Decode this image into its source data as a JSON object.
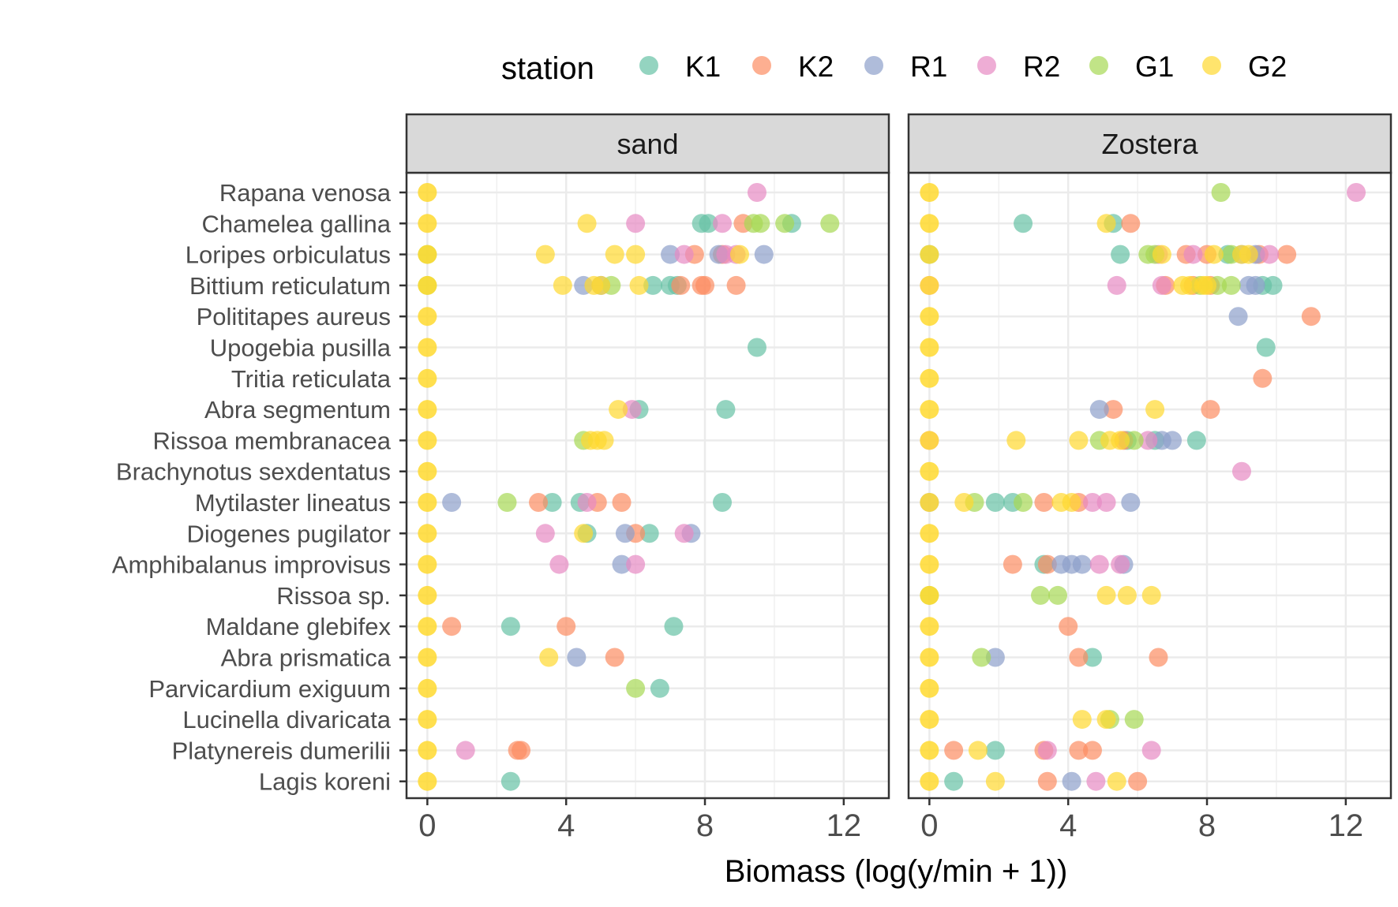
{
  "chart_data": {
    "type": "scatter",
    "title": "",
    "xlabel": "Biomass (log(y/min + 1))",
    "ylabel": "",
    "xlim": [
      -0.6,
      13.3
    ],
    "xticks": [
      "0",
      "4",
      "8",
      "12"
    ],
    "grid": true,
    "legend": {
      "title": "station",
      "placement": "top",
      "items": [
        {
          "name": "K1",
          "color": "#66c2a5"
        },
        {
          "name": "K2",
          "color": "#fc8d62"
        },
        {
          "name": "R1",
          "color": "#8da0cb"
        },
        {
          "name": "R2",
          "color": "#e78ac3"
        },
        {
          "name": "G1",
          "color": "#a6d854"
        },
        {
          "name": "G2",
          "color": "#ffd92f"
        }
      ]
    },
    "categories": [
      "Rapana venosa",
      "Chamelea gallina",
      "Loripes orbiculatus",
      "Bittium reticulatum",
      "Polititapes aureus",
      "Upogebia pusilla",
      "Tritia reticulata",
      "Abra segmentum",
      "Rissoa membranacea",
      "Brachynotus sexdentatus",
      "Mytilaster lineatus",
      "Diogenes pugilator",
      "Amphibalanus improvisus",
      "Rissoa sp.",
      "Maldane glebifex",
      "Abra prismatica",
      "Parvicardium exiguum",
      "Lucinella divaricata",
      "Platynereis dumerilii",
      "Lagis koreni"
    ],
    "panels": [
      {
        "name": "sand",
        "points": {
          "Rapana venosa": {
            "R2": [
              9.5
            ]
          },
          "Chamelea gallina": {
            "K1": [
              7.9,
              8.1,
              10.5
            ],
            "K2": [
              9.1
            ],
            "R2": [
              6.0,
              8.5
            ],
            "G1": [
              9.4,
              9.6,
              10.3,
              11.6
            ],
            "G2": [
              4.6
            ]
          },
          "Loripes orbiculatus": {
            "K2": [
              7.7,
              8.5
            ],
            "R1": [
              7.0,
              8.4,
              9.7
            ],
            "R2": [
              7.4,
              8.6,
              8.9
            ],
            "G1": [
              0
            ],
            "G2": [
              3.4,
              5.4,
              6.0,
              9.0
            ]
          },
          "Bittium reticulatum": {
            "K1": [
              6.5,
              7.0,
              7.2
            ],
            "K2": [
              7.3,
              7.9,
              8.0,
              8.9
            ],
            "R1": [
              4.5,
              5.0
            ],
            "G1": [
              0,
              5.3
            ],
            "G2": [
              3.9,
              4.8,
              5.0,
              6.1
            ]
          },
          "Polititapes aureus": {},
          "Upogebia pusilla": {
            "K1": [
              9.5
            ]
          },
          "Tritia reticulata": {},
          "Abra segmentum": {
            "K1": [
              6.1,
              8.6
            ],
            "R2": [
              5.9
            ],
            "G2": [
              5.5
            ]
          },
          "Rissoa membranacea": {
            "G1": [
              4.5
            ],
            "G2": [
              4.7,
              4.9,
              5.1
            ]
          },
          "Brachynotus sexdentatus": {},
          "Mytilaster lineatus": {
            "K1": [
              3.6,
              4.4,
              8.5
            ],
            "K2": [
              3.2,
              4.9,
              5.6
            ],
            "R1": [
              0.7
            ],
            "R2": [
              4.6
            ],
            "G1": [
              2.3
            ]
          },
          "Diogenes pugilator": {
            "K1": [
              4.6,
              6.4
            ],
            "K2": [
              6.0
            ],
            "R1": [
              5.7,
              7.6
            ],
            "R2": [
              3.4,
              7.4
            ],
            "G2": [
              4.5
            ]
          },
          "Amphibalanus improvisus": {
            "R1": [
              5.6
            ],
            "R2": [
              3.8,
              6.0
            ]
          },
          "Rissoa sp.": {},
          "Maldane glebifex": {
            "K1": [
              2.4,
              7.1
            ],
            "K2": [
              0.7,
              4.0
            ]
          },
          "Abra prismatica": {
            "K2": [
              5.4
            ],
            "R1": [
              4.3
            ],
            "G2": [
              3.5
            ]
          },
          "Parvicardium exiguum": {
            "K1": [
              6.7
            ],
            "G1": [
              6.0
            ]
          },
          "Lucinella divaricata": {},
          "Platynereis dumerilii": {
            "K2": [
              2.6,
              2.7
            ],
            "R2": [
              1.1
            ]
          },
          "Lagis koreni": {
            "K1": [
              2.4
            ]
          }
        }
      },
      {
        "name": "Zostera",
        "points": {
          "Rapana venosa": {
            "R2": [
              12.3
            ],
            "G1": [
              8.4
            ]
          },
          "Chamelea gallina": {
            "K1": [
              2.7,
              5.3
            ],
            "K2": [
              5.8
            ],
            "G2": [
              5.1
            ]
          },
          "Loripes orbiculatus": {
            "K1": [
              0,
              5.5,
              8.6
            ],
            "K2": [
              7.4,
              8.0,
              9.5,
              10.3
            ],
            "R1": [
              9.0,
              9.4
            ],
            "R2": [
              6.6,
              7.6,
              9.8
            ],
            "G1": [
              6.3,
              6.5,
              8.7
            ],
            "G2": [
              6.7,
              8.2,
              9.0,
              9.2
            ]
          },
          "Bittium reticulatum": {
            "K1": [
              9.6,
              9.9
            ],
            "K2": [
              6.8,
              7.6,
              8.1
            ],
            "R1": [
              9.2,
              9.4
            ],
            "R2": [
              0,
              5.4,
              6.7
            ],
            "G1": [
              7.8,
              8.3,
              8.7
            ],
            "G2": [
              7.3,
              7.5,
              7.9,
              8.0
            ]
          },
          "Polititapes aureus": {
            "K2": [
              11.0
            ],
            "R1": [
              8.9
            ]
          },
          "Upogebia pusilla": {
            "K1": [
              9.7
            ]
          },
          "Tritia reticulata": {
            "K2": [
              9.6
            ]
          },
          "Abra segmentum": {
            "K2": [
              5.3,
              8.1
            ],
            "R1": [
              4.9
            ],
            "G2": [
              6.5
            ]
          },
          "Rissoa membranacea": {
            "K1": [
              5.7,
              6.5,
              7.7
            ],
            "K2": [
              5.6
            ],
            "R1": [
              6.7,
              7.0
            ],
            "R2": [
              0,
              6.3
            ],
            "G1": [
              4.9,
              5.9
            ],
            "G2": [
              2.5,
              4.3,
              5.2,
              5.5
            ]
          },
          "Brachynotus sexdentatus": {
            "R2": [
              9.0
            ]
          },
          "Mytilaster lineatus": {
            "K1": [
              1.9,
              2.4
            ],
            "K2": [
              3.3,
              4.3
            ],
            "R1": [
              0,
              5.8
            ],
            "R2": [
              4.7,
              5.1
            ],
            "G1": [
              1.3,
              2.7
            ],
            "G2": [
              1.0,
              3.8,
              4.1
            ]
          },
          "Diogenes pugilator": {},
          "Amphibalanus improvisus": {
            "K1": [
              3.3
            ],
            "K2": [
              2.4,
              3.4
            ],
            "R1": [
              3.8,
              4.1,
              4.4,
              5.6
            ],
            "R2": [
              4.9,
              5.5
            ]
          },
          "Rissoa sp.": {
            "G1": [
              0,
              3.2,
              3.7
            ],
            "G2": [
              5.1,
              5.7,
              6.4
            ]
          },
          "Maldane glebifex": {
            "K2": [
              4.0
            ]
          },
          "Abra prismatica": {
            "K1": [
              4.7
            ],
            "K2": [
              4.3,
              6.6
            ],
            "R1": [
              1.9
            ],
            "G1": [
              1.5
            ]
          },
          "Parvicardium exiguum": {},
          "Lucinella divaricata": {
            "G1": [
              5.2,
              5.9
            ],
            "G2": [
              4.4,
              5.1
            ]
          },
          "Platynereis dumerilii": {
            "K1": [
              1.9
            ],
            "K2": [
              0.7,
              3.3,
              4.3,
              4.7
            ],
            "R2": [
              3.4,
              6.4
            ],
            "G2": [
              1.4
            ]
          },
          "Lagis koreni": {
            "K1": [
              0.7
            ],
            "K2": [
              3.4,
              6.0
            ],
            "R1": [
              4.1
            ],
            "R2": [
              4.8
            ],
            "G2": [
              1.9,
              5.4
            ]
          }
        }
      }
    ]
  }
}
